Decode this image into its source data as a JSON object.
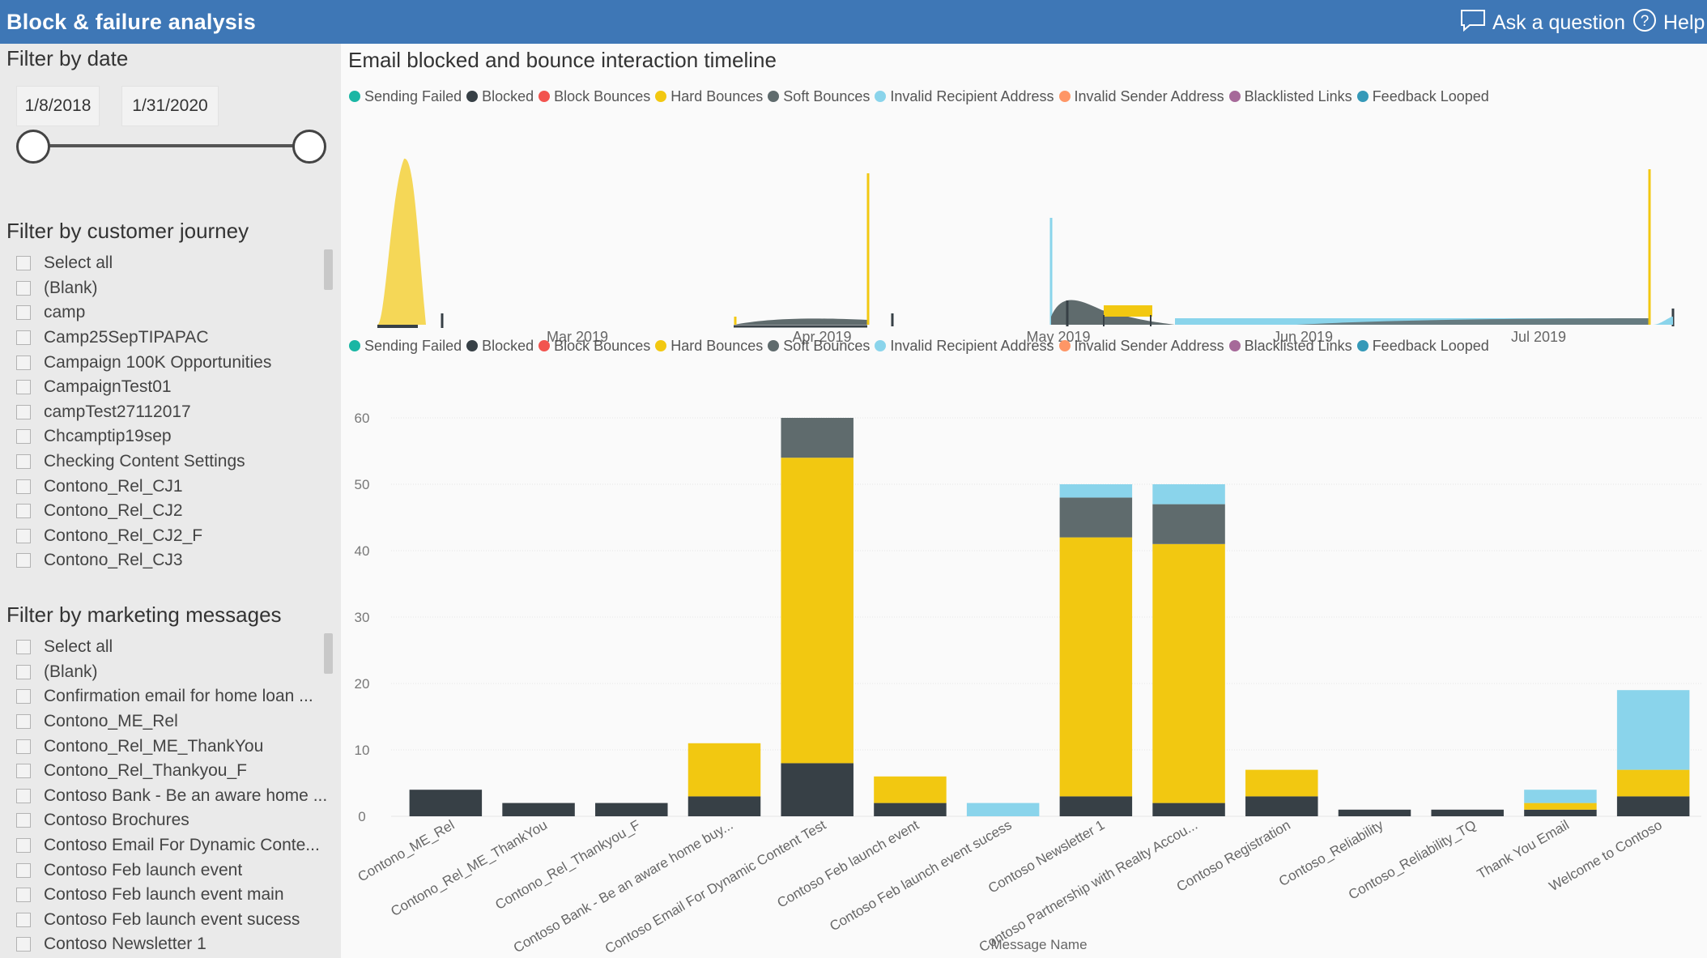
{
  "header": {
    "title": "Block & failure analysis",
    "ask_label": "Ask a question",
    "help_label": "Help"
  },
  "colors": {
    "header_bg": "#3e77b6",
    "panel_bg": "#eaeaea"
  },
  "date_filter": {
    "title": "Filter by date",
    "start": "1/8/2018",
    "end": "1/31/2020"
  },
  "journey_filter": {
    "title": "Filter by customer journey",
    "items": [
      "Select all",
      "(Blank)",
      "camp",
      "Camp25SepTIPAPAC",
      "Campaign 100K Opportunities",
      "CampaignTest01",
      "campTest27112017",
      "Chcamptip19sep",
      "Checking Content Settings",
      "Contono_Rel_CJ1",
      "Contono_Rel_CJ2",
      "Contono_Rel_CJ2_F",
      "Contono_Rel_CJ3"
    ]
  },
  "message_filter": {
    "title": "Filter by marketing messages",
    "items": [
      "Select all",
      "(Blank)",
      "Confirmation email for home loan ...",
      "Contono_ME_Rel",
      "Contono_Rel_ME_ThankYou",
      "Contono_Rel_Thankyou_F",
      "Contoso Bank - Be an aware home ...",
      "Contoso Brochures",
      "Contoso Email For Dynamic Conte...",
      "Contoso Feb launch event",
      "Contoso Feb launch event main",
      "Contoso Feb launch event sucess",
      "Contoso Newsletter 1"
    ]
  },
  "main": {
    "title": "Email blocked and bounce interaction timeline"
  },
  "legend": [
    {
      "label": "Sending Failed",
      "color": "#1ab6a4"
    },
    {
      "label": "Blocked",
      "color": "#374046"
    },
    {
      "label": "Block Bounces",
      "color": "#f2544f"
    },
    {
      "label": "Hard Bounces",
      "color": "#f2c811"
    },
    {
      "label": "Soft Bounces",
      "color": "#5f6b6d"
    },
    {
      "label": "Invalid Recipient Address",
      "color": "#8ad4eb"
    },
    {
      "label": "Invalid Sender Address",
      "color": "#fe9666"
    },
    {
      "label": "Blacklisted Links",
      "color": "#a66999"
    },
    {
      "label": "Feedback Looped",
      "color": "#3599b8"
    }
  ],
  "chart_data": [
    {
      "type": "area",
      "title": "Email blocked and bounce interaction timeline",
      "x_ticks": [
        "Mar 2019",
        "Apr 2019",
        "May 2019",
        "Jun 2019",
        "Jul 2019"
      ],
      "series": [
        {
          "name": "Hard Bounces",
          "color": "#f2c811"
        },
        {
          "name": "Soft Bounces",
          "color": "#5f6b6d"
        },
        {
          "name": "Blocked",
          "color": "#374046"
        },
        {
          "name": "Invalid Recipient Address",
          "color": "#8ad4eb"
        }
      ]
    },
    {
      "type": "bar",
      "stacked": true,
      "xlabel": "Message Name",
      "ylim": [
        0,
        60
      ],
      "y_ticks": [
        0,
        10,
        20,
        30,
        40,
        50,
        60
      ],
      "categories": [
        "Contono_ME_Rel",
        "Contono_Rel_ME_ThankYou",
        "Contono_Rel_Thankyou_F",
        "Contoso Bank - Be an aware home buy...",
        "Contoso Email For Dynamic Content Test",
        "Contoso Feb launch event",
        "Contoso Feb launch event sucess",
        "Contoso Newsletter 1",
        "Contoso Partnership with Realty Accou...",
        "Contoso Registration",
        "Contoso_Reliability",
        "Contoso_Reliability_TQ",
        "Thank You Email",
        "Welcome to Contoso"
      ],
      "series": [
        {
          "name": "Blocked",
          "color": "#374046",
          "values": [
            4,
            2,
            2,
            3,
            8,
            2,
            0,
            3,
            2,
            3,
            1,
            1,
            1,
            3
          ]
        },
        {
          "name": "Hard Bounces",
          "color": "#f2c811",
          "values": [
            0,
            0,
            0,
            8,
            46,
            4,
            0,
            39,
            39,
            4,
            0,
            0,
            1,
            4
          ]
        },
        {
          "name": "Soft Bounces",
          "color": "#5f6b6d",
          "values": [
            0,
            0,
            0,
            0,
            6,
            0,
            0,
            6,
            6,
            0,
            0,
            0,
            0,
            0
          ]
        },
        {
          "name": "Invalid Recipient Address",
          "color": "#8ad4eb",
          "values": [
            0,
            0,
            0,
            0,
            0,
            0,
            2,
            2,
            3,
            0,
            0,
            0,
            2,
            12
          ]
        }
      ]
    }
  ]
}
